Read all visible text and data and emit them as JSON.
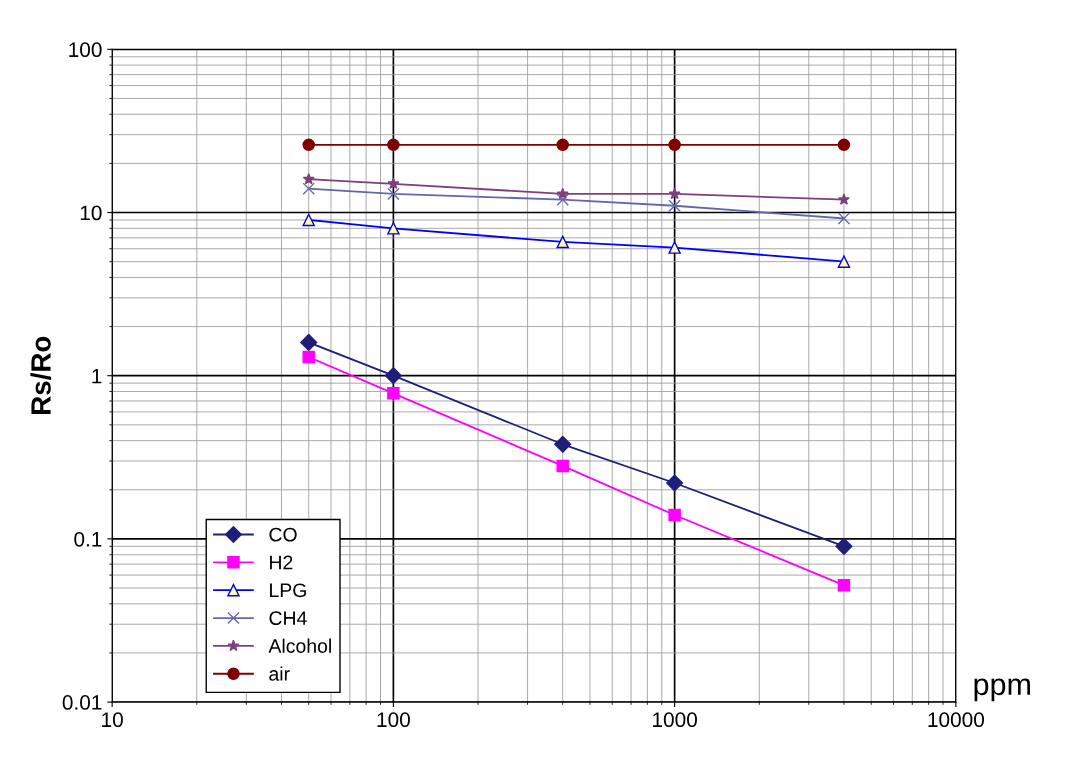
{
  "chart_data": {
    "type": "line",
    "x": [
      50,
      100,
      400,
      1000,
      4000
    ],
    "xlabel": "ppm",
    "ylabel": "Rs/Ro",
    "log": "xy",
    "xlim": [
      10,
      10000
    ],
    "xticks": [
      10,
      100,
      1000,
      10000
    ],
    "ylim": [
      0.01,
      100
    ],
    "yticks": [
      0.01,
      0.1,
      1,
      10,
      100
    ],
    "grid": true,
    "legend": "bottom left",
    "series": [
      {
        "name": "CO",
        "color": "#1f1f7a",
        "marker": "diamond",
        "values": [
          1.6,
          1.0,
          0.38,
          0.22,
          0.09
        ]
      },
      {
        "name": "H2",
        "color": "#ff00ff",
        "marker": "square",
        "values": [
          1.3,
          0.78,
          0.28,
          0.14,
          0.052
        ]
      },
      {
        "name": "LPG",
        "color": "#0000ff",
        "marker": "triangle",
        "values": [
          9,
          8,
          6.6,
          6.1,
          5
        ]
      },
      {
        "name": "CH4",
        "color": "#6666aa",
        "marker": "cross",
        "values": [
          14,
          13,
          12,
          11,
          9.2
        ]
      },
      {
        "name": "Alcohol",
        "color": "#7f3f7f",
        "marker": "star",
        "values": [
          16,
          15,
          13,
          13,
          12
        ]
      },
      {
        "name": "air",
        "color": "#800000",
        "marker": "circle",
        "values": [
          26,
          26,
          26,
          26,
          26
        ]
      }
    ]
  }
}
